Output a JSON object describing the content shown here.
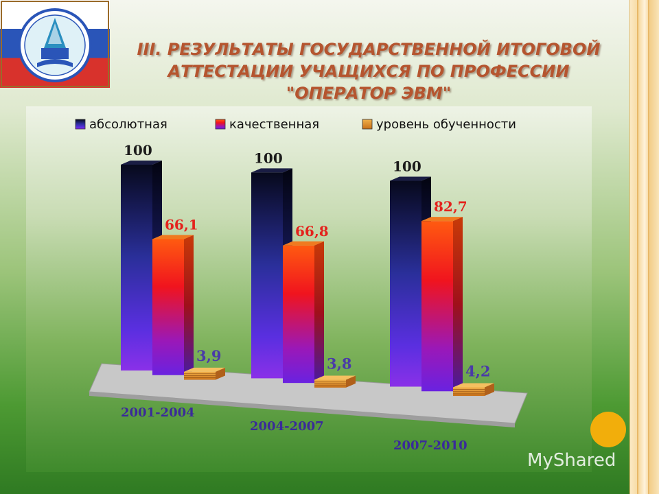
{
  "slide": {
    "title_lines": [
      "III. РЕЗУЛЬТАТЫ ГОСУДАРСТВЕННОЙ ИТОГОВОЙ",
      "АТТЕСТАЦИИ УЧАЩИХСЯ ПО ПРОФЕССИИ",
      "\"ОПЕРАТОР ЭВМ\""
    ],
    "watermark": "MyShared"
  },
  "logo": {
    "text": "УРАЛЬСКИЙ МНОГОПРОФИЛЬНЫЙ КОЛЛЕДЖ"
  },
  "colors": {
    "absolute": "#2a2f8a",
    "quality": "#ee2a1c",
    "level": "#e0902a",
    "label_dark": "#1b1b1b",
    "label_red": "#e4221c",
    "label_blue": "#4a3aa8",
    "floor": "#c8c8c8"
  },
  "chart_data": {
    "type": "bar",
    "categories": [
      "2001-2004",
      "2004-2007",
      "2007-2010"
    ],
    "series": [
      {
        "name": "абсолютная",
        "values": [
          100,
          100,
          100
        ],
        "labels": [
          "100",
          "100",
          "100"
        ]
      },
      {
        "name": "качественная",
        "values": [
          66.1,
          66.8,
          82.7
        ],
        "labels": [
          "66,1",
          "66,8",
          "82,7"
        ]
      },
      {
        "name": "уровень обученности",
        "values": [
          3.9,
          3.8,
          4.2
        ],
        "labels": [
          "3,9",
          "3,8",
          "4,2"
        ]
      }
    ],
    "legend": "top",
    "grid": false,
    "ylim": [
      0,
      100
    ]
  }
}
